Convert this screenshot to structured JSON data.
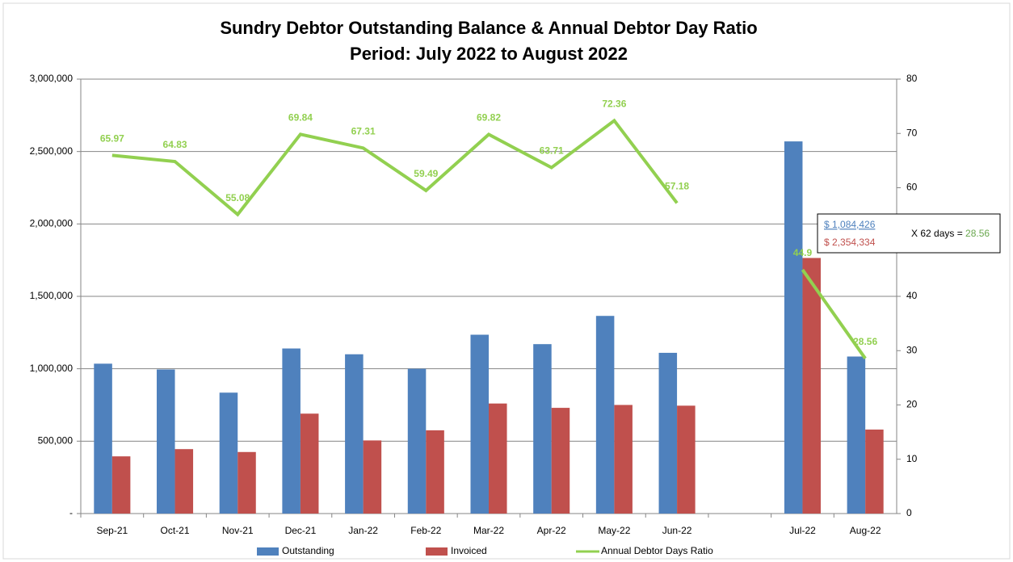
{
  "chart_data": {
    "type": "bar",
    "title": "Sundry Debtor Outstanding Balance & Annual Debtor Day Ratio",
    "subtitle": "Period: July 2022 to August 2022",
    "categories": [
      "Sep-21",
      "Oct-21",
      "Nov-21",
      "Dec-21",
      "Jan-22",
      "Feb-22",
      "Mar-22",
      "Apr-22",
      "May-22",
      "Jun-22",
      null,
      "Jul-22",
      "Aug-22"
    ],
    "series": [
      {
        "name": "Outstanding",
        "type": "bar",
        "color": "#4f81bd",
        "values": [
          1035000,
          995000,
          835000,
          1140000,
          1100000,
          1000000,
          1235000,
          1170000,
          1365000,
          1110000,
          null,
          2570000,
          1084426
        ]
      },
      {
        "name": "Invoiced",
        "type": "bar",
        "color": "#c0504d",
        "values": [
          395000,
          445000,
          425000,
          690000,
          505000,
          575000,
          760000,
          730000,
          750000,
          745000,
          null,
          1765000,
          580000
        ]
      },
      {
        "name": "Annual Debtor Days Ratio",
        "type": "line",
        "axis": "y2",
        "color": "#92d050",
        "values": [
          65.97,
          64.83,
          55.08,
          69.84,
          67.31,
          59.49,
          69.82,
          63.71,
          72.36,
          57.18,
          null,
          44.9,
          28.56
        ]
      }
    ],
    "ylim": [
      0,
      3000000
    ],
    "yticks": [
      {
        "value": 0,
        "label": "-"
      },
      {
        "value": 500000,
        "label": "500,000"
      },
      {
        "value": 1000000,
        "label": "1,000,000"
      },
      {
        "value": 1500000,
        "label": "1,500,000"
      },
      {
        "value": 2000000,
        "label": "2,000,000"
      },
      {
        "value": 2500000,
        "label": "2,500,000"
      },
      {
        "value": 3000000,
        "label": "3,000,000"
      }
    ],
    "y2lim": [
      0,
      80
    ],
    "y2ticks": [
      0,
      10,
      20,
      30,
      40,
      50,
      60,
      70,
      80
    ],
    "grid": true,
    "legend": "bottom",
    "annotation": {
      "numerator": "$   1,084,426",
      "denominator": "$   2,354,334",
      "formula": "X 62 days = ",
      "result": "28.56"
    }
  }
}
